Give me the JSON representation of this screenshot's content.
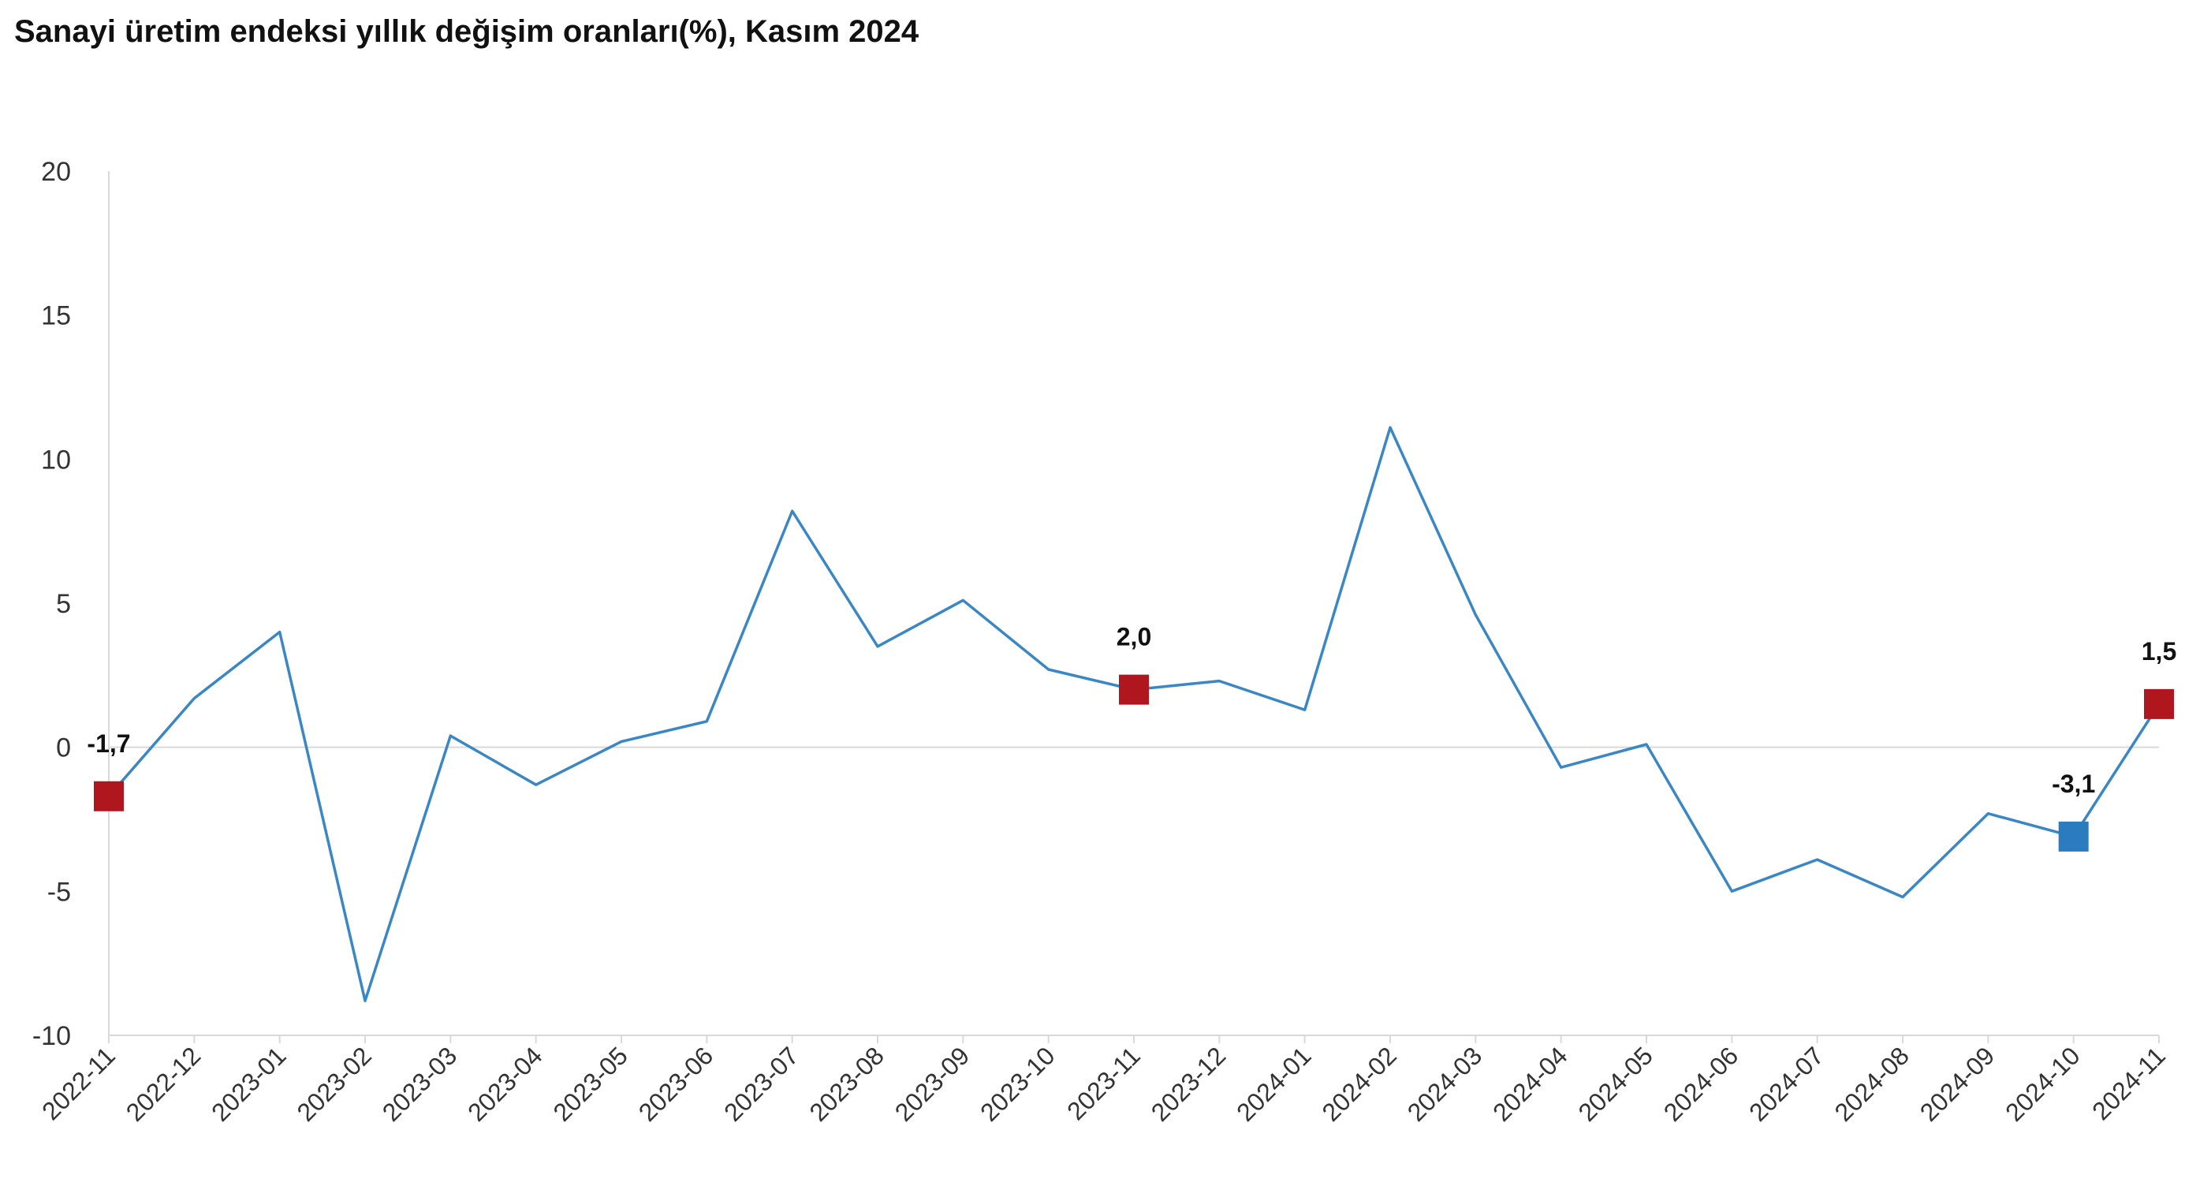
{
  "title": "Sanayi üretim endeksi yıllık değişim oranları(%), Kasım 2024",
  "chart_data": {
    "type": "line",
    "title": "Sanayi üretim endeksi yıllık değişim oranları(%), Kasım 2024",
    "xlabel": "",
    "ylabel": "",
    "ylim": [
      -10,
      20
    ],
    "y_ticks": [
      20,
      15,
      10,
      5,
      0,
      -5,
      -10
    ],
    "grid": false,
    "categories": [
      "2022-11",
      "2022-12",
      "2023-01",
      "2023-02",
      "2023-03",
      "2023-04",
      "2023-05",
      "2023-06",
      "2023-07",
      "2023-08",
      "2023-09",
      "2023-10",
      "2023-11",
      "2023-12",
      "2024-01",
      "2024-02",
      "2024-03",
      "2024-04",
      "2024-05",
      "2024-06",
      "2024-07",
      "2024-08",
      "2024-09",
      "2024-10",
      "2024-11"
    ],
    "series": [
      {
        "values": [
          -1.7,
          1.7,
          4.0,
          -8.8,
          0.4,
          -1.3,
          0.2,
          0.9,
          8.2,
          3.5,
          5.1,
          2.7,
          2.0,
          2.3,
          1.3,
          11.1,
          4.6,
          -0.7,
          0.1,
          -5.0,
          -3.9,
          -5.2,
          -2.3,
          -3.1,
          1.5
        ],
        "color": "#3A87C4"
      }
    ],
    "highlights": [
      {
        "category": "2022-11",
        "label": "-1,7",
        "color": "#B0161E"
      },
      {
        "category": "2023-11",
        "label": "2,0",
        "color": "#B0161E"
      },
      {
        "category": "2024-10",
        "label": "-3,1",
        "color": "#2B7BBF"
      },
      {
        "category": "2024-11",
        "label": "1,5",
        "color": "#B0161E"
      }
    ],
    "axis_color": "#d9d9d9"
  }
}
